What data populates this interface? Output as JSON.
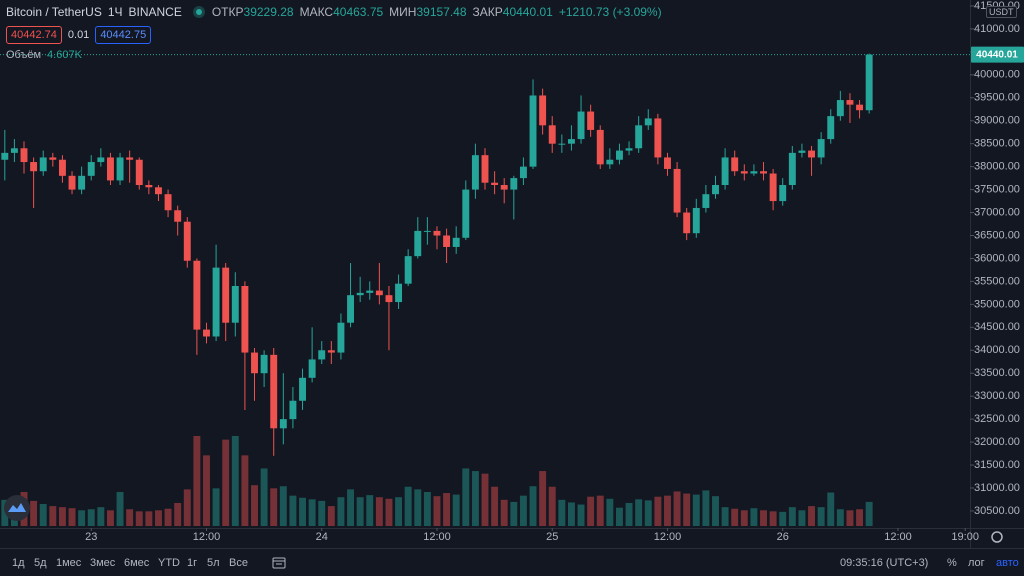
{
  "chart_data": {
    "type": "candlestick",
    "title": "Bitcoin / TetherUS",
    "interval": "1Ч",
    "exchange": "BINANCE",
    "legend": {
      "open_label": "ОТКР",
      "high_label": "МАКС",
      "low_label": "МИН",
      "close_label": "ЗАКР",
      "change": "+1210.73 (+3.09%)"
    },
    "quote": {
      "bid": 40442.74,
      "spread": 0.01,
      "ask": 40442.75
    },
    "volume_title": "Объём",
    "volume_value_label": "4.607K",
    "currency": "USDT",
    "up_color": "#26a69a",
    "down_color": "#ef5350",
    "grid": false,
    "open": [
      38150,
      38300,
      38400,
      38100,
      37900,
      38200,
      38150,
      37800,
      37500,
      37800,
      38100,
      38200,
      37700,
      38200,
      38150,
      37600,
      37550,
      37400,
      37050,
      36800,
      35950,
      34450,
      34300,
      35800,
      34600,
      35400,
      33950,
      33500,
      33900,
      32300,
      32500,
      32900,
      33400,
      33800,
      34000,
      33950,
      34600,
      35200,
      35250,
      35300,
      35200,
      35050,
      35450,
      36050,
      36600,
      36600,
      36500,
      36250,
      36450,
      37500,
      38250,
      37650,
      37600,
      37500,
      37750,
      38000,
      39550,
      38900,
      38500,
      38500,
      38600,
      39200,
      38800,
      38050,
      38150,
      38350,
      38400,
      38900,
      39050,
      38200,
      37950,
      37000,
      36550,
      37100,
      37400,
      37600,
      38200,
      37900,
      37850,
      37900,
      37850,
      37250,
      37600,
      38300,
      38350,
      38200,
      38600,
      39100,
      39450,
      39350,
      39229.28
    ],
    "high": [
      38800,
      38600,
      38550,
      38200,
      38350,
      38300,
      38250,
      37900,
      38000,
      38250,
      38400,
      38300,
      38300,
      38350,
      38200,
      37700,
      37600,
      37500,
      37150,
      36900,
      36000,
      34600,
      36300,
      35900,
      35700,
      35500,
      34050,
      34000,
      34050,
      33500,
      33200,
      33600,
      34500,
      34200,
      34200,
      34800,
      35900,
      35600,
      35500,
      35900,
      35400,
      35650,
      36200,
      36900,
      36900,
      36700,
      36650,
      36700,
      37700,
      38500,
      38400,
      37900,
      37750,
      37800,
      38200,
      39900,
      39700,
      39100,
      38700,
      38900,
      39550,
      39350,
      38900,
      38400,
      38500,
      38550,
      39100,
      39250,
      39150,
      38300,
      38100,
      37100,
      37300,
      37600,
      37800,
      38400,
      38350,
      38050,
      38050,
      38100,
      37950,
      37750,
      38450,
      38500,
      38450,
      38750,
      39250,
      39650,
      39600,
      39450,
      40463.75
    ],
    "low": [
      37700,
      38100,
      37850,
      37100,
      37800,
      38000,
      37650,
      37400,
      37400,
      37700,
      38000,
      37600,
      37600,
      37650,
      37500,
      37400,
      37250,
      36900,
      36500,
      35800,
      33900,
      34150,
      34200,
      34200,
      34300,
      32700,
      32900,
      33200,
      31700,
      31950,
      32300,
      32700,
      33300,
      33700,
      33700,
      33800,
      34500,
      35050,
      35100,
      35000,
      34000,
      34900,
      35400,
      36000,
      36300,
      36200,
      35900,
      36100,
      36400,
      37300,
      37500,
      37400,
      37200,
      36850,
      37600,
      37950,
      38700,
      38300,
      38300,
      38350,
      38500,
      38650,
      37950,
      37950,
      38050,
      38250,
      38300,
      38800,
      38050,
      37800,
      36900,
      36400,
      36450,
      37000,
      37300,
      37500,
      37800,
      37700,
      37800,
      37700,
      37050,
      37150,
      37500,
      38200,
      37800,
      38050,
      38500,
      39000,
      38950,
      39050,
      39157.48
    ],
    "close": [
      38300,
      38400,
      38100,
      37900,
      38200,
      38150,
      37800,
      37500,
      37800,
      38100,
      38200,
      37700,
      38200,
      38150,
      37600,
      37550,
      37400,
      37050,
      36800,
      35950,
      34450,
      34300,
      35800,
      34600,
      35400,
      33950,
      33500,
      33900,
      32300,
      32500,
      32900,
      33400,
      33800,
      34000,
      33950,
      34600,
      35200,
      35250,
      35300,
      35200,
      35050,
      35450,
      36050,
      36600,
      36600,
      36500,
      36250,
      36450,
      37500,
      38250,
      37650,
      37600,
      37500,
      37750,
      38000,
      39550,
      38900,
      38500,
      38500,
      38600,
      39200,
      38800,
      38050,
      38150,
      38350,
      38400,
      38900,
      39050,
      38200,
      37950,
      37000,
      36550,
      37100,
      37400,
      37600,
      38200,
      37900,
      37850,
      37900,
      37850,
      37250,
      37600,
      38300,
      38350,
      38200,
      38600,
      39100,
      39450,
      39350,
      39229.28,
      40440.01
    ],
    "volume": [
      5000,
      4600,
      6500,
      4800,
      4200,
      3800,
      3600,
      3400,
      3000,
      3200,
      3600,
      3000,
      6500,
      3200,
      2800,
      2800,
      3000,
      3300,
      4400,
      7000,
      17200,
      13500,
      7200,
      16500,
      17200,
      13500,
      7800,
      11000,
      7200,
      7600,
      5800,
      5400,
      5100,
      4800,
      3800,
      5500,
      7000,
      5500,
      5900,
      5500,
      5200,
      5500,
      7500,
      7000,
      6500,
      5700,
      6300,
      6000,
      11000,
      10500,
      10000,
      7500,
      5000,
      4600,
      5800,
      7600,
      10500,
      7500,
      5000,
      4500,
      4100,
      5600,
      5800,
      5200,
      3500,
      4400,
      5100,
      4900,
      5600,
      5800,
      6600,
      6200,
      6000,
      6800,
      5700,
      3600,
      3300,
      3000,
      3400,
      3000,
      2800,
      2700,
      3600,
      3000,
      3800,
      3600,
      6400,
      3200,
      3000,
      3200,
      4607
    ],
    "xlim": [
      -0.5,
      100.5
    ],
    "xticks": [
      {
        "value": 9,
        "label": "23"
      },
      {
        "value": 21,
        "label": "12:00"
      },
      {
        "value": 33,
        "label": "24"
      },
      {
        "value": 45,
        "label": "12:00"
      },
      {
        "value": 57,
        "label": "25"
      },
      {
        "value": 69,
        "label": "12:00"
      },
      {
        "value": 81,
        "label": "26"
      },
      {
        "value": 93,
        "label": "12:00"
      },
      {
        "value": 100,
        "label": "19:00"
      }
    ],
    "ylim": [
      30150,
      41630
    ],
    "yticks": [
      {
        "value": 30500,
        "label": "30500.00"
      },
      {
        "value": 31000,
        "label": "31000.00"
      },
      {
        "value": 31500,
        "label": "31500.00"
      },
      {
        "value": 32000,
        "label": "32000.00"
      },
      {
        "value": 32500,
        "label": "32500.00"
      },
      {
        "value": 33000,
        "label": "33000.00"
      },
      {
        "value": 33500,
        "label": "33500.00"
      },
      {
        "value": 34000,
        "label": "34000.00"
      },
      {
        "value": 34500,
        "label": "34500.00"
      },
      {
        "value": 35000,
        "label": "35000.00"
      },
      {
        "value": 35500,
        "label": "35500.00"
      },
      {
        "value": 36000,
        "label": "36000.00"
      },
      {
        "value": 36500,
        "label": "36500.00"
      },
      {
        "value": 37000,
        "label": "37000.00"
      },
      {
        "value": 37500,
        "label": "37500.00"
      },
      {
        "value": 38000,
        "label": "38000.00"
      },
      {
        "value": 38500,
        "label": "38500.00"
      },
      {
        "value": 39000,
        "label": "39000.00"
      },
      {
        "value": 39500,
        "label": "39500.00"
      },
      {
        "value": 40000,
        "label": "40000.00"
      },
      {
        "value": 40500,
        "label": "40500.00"
      },
      {
        "value": 41000,
        "label": "41000.00"
      },
      {
        "value": 41500,
        "label": "41500.00"
      }
    ]
  },
  "toolbar": {
    "ranges": [
      "1д",
      "5д",
      "1мес",
      "3мес",
      "6мес",
      "YTD",
      "1г",
      "5л",
      "Все"
    ],
    "clock": "09:35:16 (UTC+3)",
    "scale_buttons": [
      "%",
      "лог",
      "авто"
    ]
  }
}
